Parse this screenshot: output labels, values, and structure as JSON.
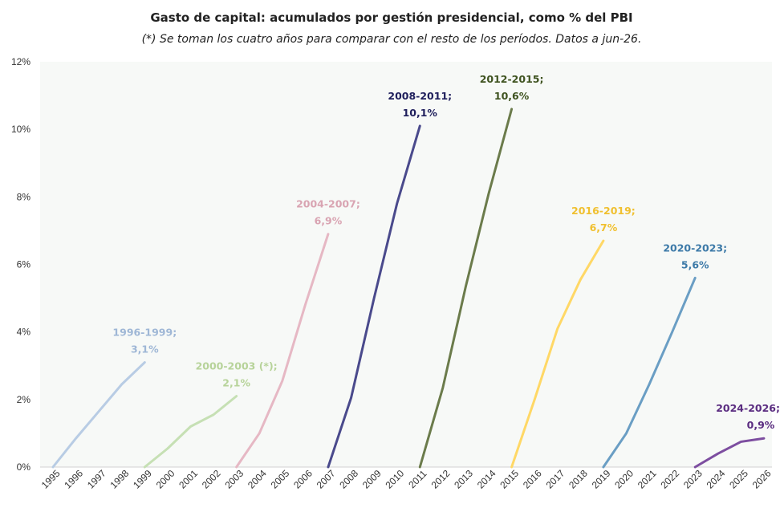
{
  "chart_data": {
    "type": "line",
    "title": "Gasto de capital: acumulados por gestión presidencial, como % del PBI",
    "subtitle": "(*) Se toman los cuatro años para comparar con el resto de los períodos. Datos a jun-26.",
    "x_categories": [
      "1995",
      "1996",
      "1997",
      "1998",
      "1999",
      "2000",
      "2001",
      "2002",
      "2003",
      "2004",
      "2005",
      "2006",
      "2007",
      "2008",
      "2009",
      "2010",
      "2011",
      "2012",
      "2013",
      "2014",
      "2015",
      "2016",
      "2017",
      "2018",
      "2019",
      "2020",
      "2021",
      "2022",
      "2023",
      "2024",
      "2025",
      "2026"
    ],
    "y_ticks": [
      "0%",
      "2%",
      "4%",
      "6%",
      "8%",
      "10%",
      "12%"
    ],
    "ylim": [
      0,
      12
    ],
    "grid": false,
    "legend": "none",
    "plot_background": "#f7f9f7",
    "series": [
      {
        "label_line1": "1996-1999;",
        "label_line2": "3,1%",
        "color": "#b8cce4",
        "x": [
          "1995",
          "1996",
          "1997",
          "1998",
          "1999"
        ],
        "values": [
          0,
          0.85,
          1.65,
          2.45,
          3.1
        ]
      },
      {
        "label_line1": "2000-2003 (*);",
        "label_line2": "2,1%",
        "color": "#c6e0b4",
        "x": [
          "1999",
          "2000",
          "2001",
          "2002",
          "2003"
        ],
        "values": [
          0,
          0.55,
          1.2,
          1.55,
          2.1
        ]
      },
      {
        "label_line1": "2004-2007;",
        "label_line2": "6,9%",
        "color": "#e6b8c4",
        "x": [
          "2003",
          "2004",
          "2005",
          "2006",
          "2007"
        ],
        "values": [
          0,
          1.0,
          2.55,
          4.8,
          6.9
        ]
      },
      {
        "label_line1": "2008-2011;",
        "label_line2": "10,1%",
        "color": "#4a4a8c",
        "x": [
          "2007",
          "2008",
          "2009",
          "2010",
          "2011"
        ],
        "values": [
          0,
          2.05,
          5.0,
          7.8,
          10.1
        ]
      },
      {
        "label_line1": "2012-2015;",
        "label_line2": "10,6%",
        "color": "#6b7b4b",
        "x": [
          "2011",
          "2012",
          "2013",
          "2014",
          "2015"
        ],
        "values": [
          0,
          2.35,
          5.35,
          8.1,
          10.6
        ]
      },
      {
        "label_line1": "2016-2019;",
        "label_line2": "6,7%",
        "color": "#ffd866",
        "x": [
          "2015",
          "2016",
          "2017",
          "2018",
          "2019"
        ],
        "values": [
          0,
          2.0,
          4.1,
          5.55,
          6.7
        ]
      },
      {
        "label_line1": "2020-2023;",
        "label_line2": "5,6%",
        "color": "#6a9ec4",
        "x": [
          "2019",
          "2020",
          "2021",
          "2022",
          "2023"
        ],
        "values": [
          0,
          1.0,
          2.45,
          4.0,
          5.6
        ]
      },
      {
        "label_line1": "2024-2026;",
        "label_line2": "0,9%",
        "color": "#7d4ea0",
        "x": [
          "2023",
          "2024",
          "2025",
          "2026"
        ],
        "values": [
          0,
          0.4,
          0.75,
          0.85
        ]
      }
    ],
    "label_colors": [
      "#9fb7d6",
      "#b7d39a",
      "#d9a4b2",
      "#1f1f5c",
      "#3f5320",
      "#f0c030",
      "#3d7aa8",
      "#5a2c80"
    ]
  }
}
